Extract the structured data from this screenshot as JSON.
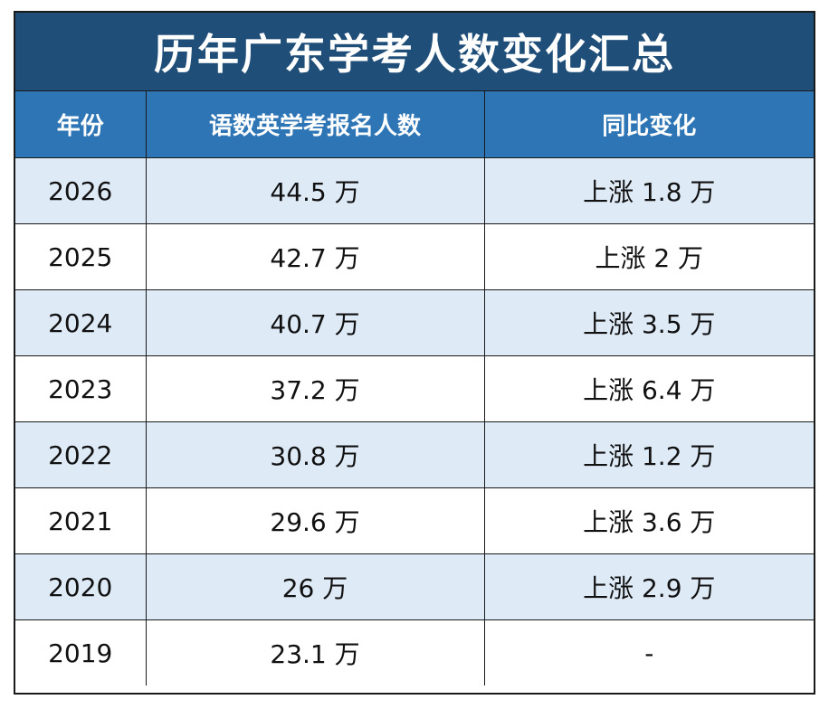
{
  "title": "历年广东学考人数变化汇总",
  "headers": [
    "年份",
    "语数英学考报名人数",
    "同比变化"
  ],
  "rows": [
    {
      "year": "2026",
      "count": "44.5 万",
      "change": "上涨 1.8 万"
    },
    {
      "year": "2025",
      "count": "42.7 万",
      "change": "上涨 2 万"
    },
    {
      "year": "2024",
      "count": "40.7 万",
      "change": "上涨 3.5 万"
    },
    {
      "year": "2023",
      "count": "37.2 万",
      "change": "上涨 6.4 万"
    },
    {
      "year": "2022",
      "count": "30.8 万",
      "change": "上涨 1.2 万"
    },
    {
      "year": "2021",
      "count": "29.6 万",
      "change": "上涨 3.6 万"
    },
    {
      "year": "2020",
      "count": "26 万",
      "change": "上涨 2.9 万"
    },
    {
      "year": "2019",
      "count": "23.1 万",
      "change": "-"
    }
  ],
  "colors": {
    "title_bg": "#1f4e79",
    "header_bg": "#2e75b6",
    "row_shade": "#deebf7",
    "border": "#1a1a1a"
  }
}
